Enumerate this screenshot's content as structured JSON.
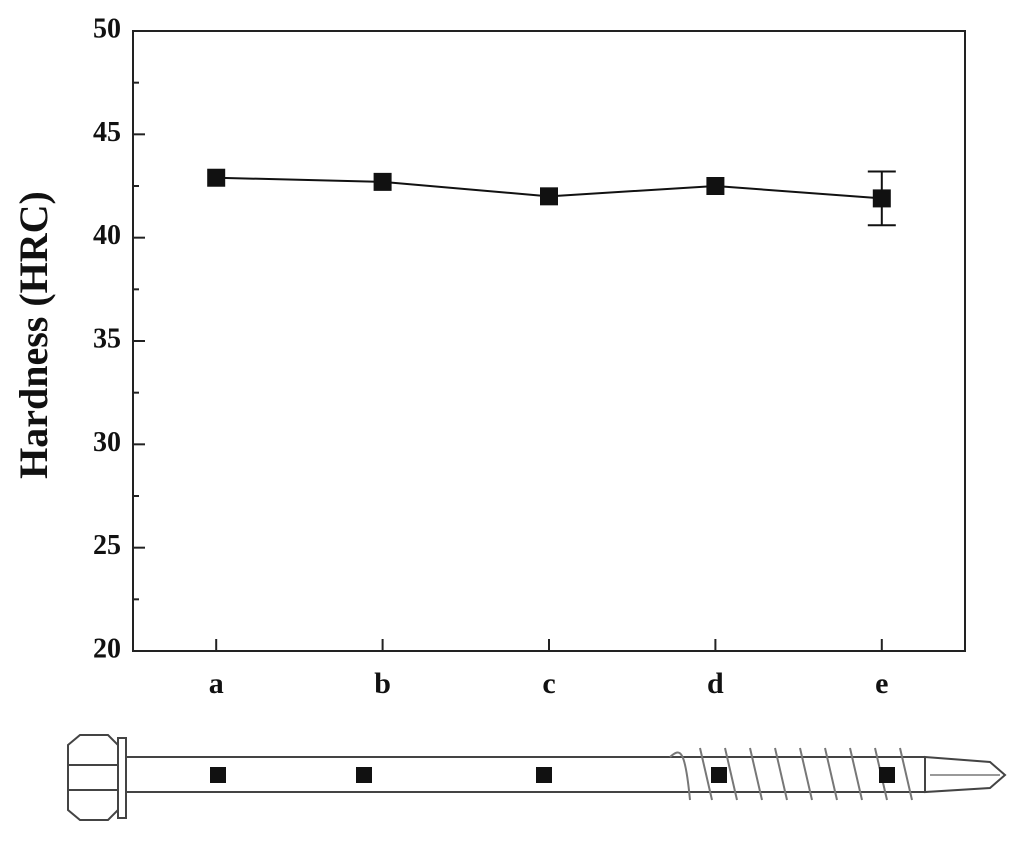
{
  "chart_data": {
    "type": "line",
    "y_label": "Hardness (HRC)",
    "categories": [
      "a",
      "b",
      "c",
      "d",
      "e"
    ],
    "series": [
      {
        "color": "#111111",
        "values": [
          42.9,
          42.7,
          42.0,
          42.5,
          41.9
        ],
        "errors": [
          null,
          null,
          null,
          null,
          1.3
        ]
      }
    ],
    "ylim": [
      20,
      50
    ],
    "yticks": [
      20,
      25,
      30,
      35,
      40,
      45,
      50
    ],
    "yminorticks": [
      22.5,
      27.5,
      32.5,
      37.5,
      42.5,
      47.5
    ]
  }
}
